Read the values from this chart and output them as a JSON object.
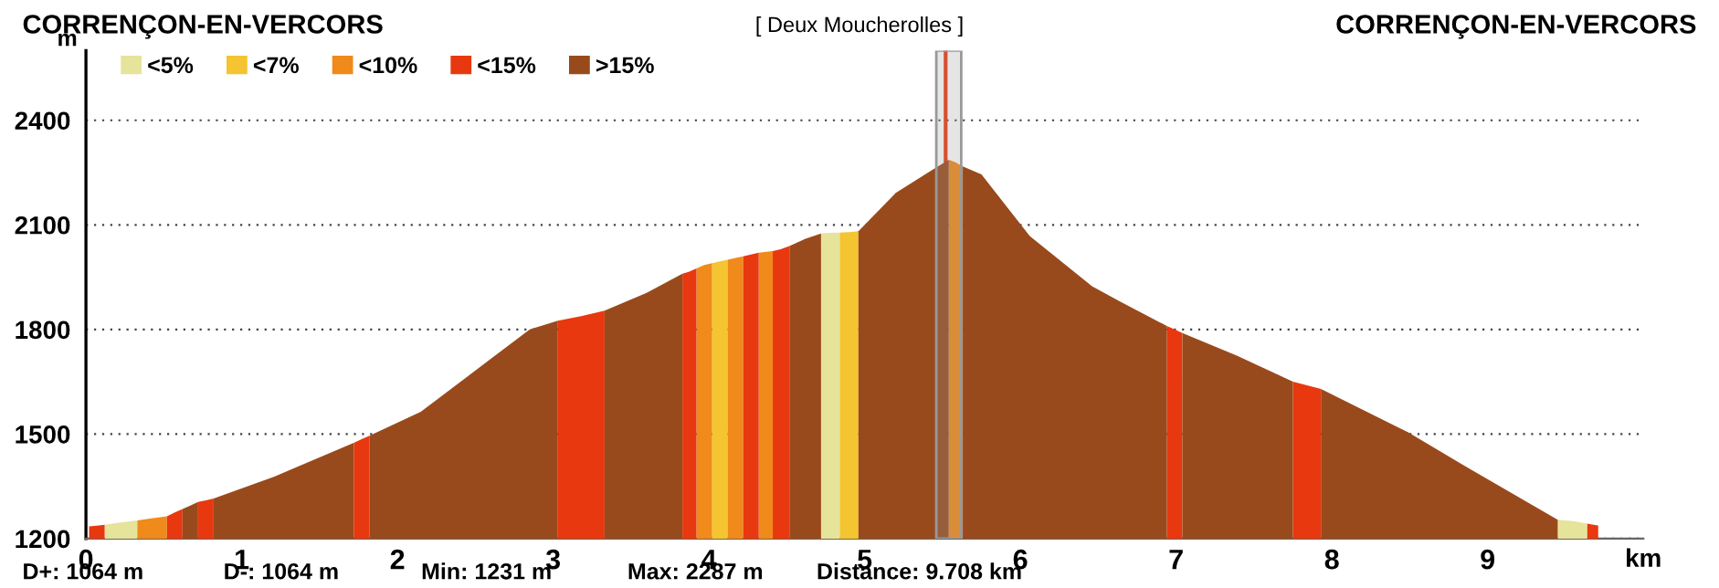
{
  "chart_data": {
    "type": "area",
    "title": "CORRENÇON-EN-VERCORS",
    "subtitle": "[ Deux Moucherolles ]",
    "xlabel": "km",
    "ylabel": "m",
    "annotations": [
      "CORRENÇON-EN-VERCORS",
      "D+: 1064 m",
      "D-: 1064 m",
      "Min: 1231 m",
      "Max: 2287 m",
      "Distance: 9.708 km"
    ],
    "x": [
      0.02,
      0.07,
      0.12,
      0.2,
      0.33,
      0.42,
      0.52,
      0.57,
      0.62,
      0.67,
      0.72,
      0.77,
      0.82,
      1.21,
      1.72,
      1.77,
      1.82,
      2.15,
      2.58,
      2.85,
      3.03,
      3.18,
      3.33,
      3.6,
      3.83,
      3.87,
      3.92,
      3.97,
      4.02,
      4.07,
      4.12,
      4.17,
      4.22,
      4.27,
      4.32,
      4.36,
      4.41,
      4.46,
      4.52,
      4.62,
      4.72,
      4.78,
      4.84,
      4.9,
      4.96,
      5.2,
      5.54,
      5.58,
      5.63,
      5.75,
      6.06,
      6.46,
      6.64,
      6.94,
      6.99,
      7.04,
      7.39,
      7.75,
      7.84,
      7.93,
      8.49,
      8.87,
      9.45,
      9.55,
      9.64,
      9.68,
      9.71
    ],
    "series": [
      {
        "name": "<5%",
        "color": "#e6e39a",
        "values": [
          null,
          null,
          1240,
          1245,
          1252,
          null,
          null,
          null,
          null,
          null,
          null,
          null,
          null,
          null,
          null,
          null,
          null,
          null,
          null,
          null,
          null,
          null,
          null,
          null,
          null,
          null,
          null,
          null,
          null,
          null,
          null,
          null,
          null,
          null,
          null,
          null,
          null,
          null,
          null,
          null,
          2075,
          2077,
          2078,
          null,
          null,
          null,
          null,
          null,
          null,
          null,
          null,
          null,
          null,
          null,
          null,
          null,
          null,
          null,
          null,
          null,
          null,
          null,
          1254,
          1250,
          1243,
          null,
          null
        ]
      },
      {
        "name": "<7%",
        "color": "#f4c431",
        "values": [
          null,
          null,
          null,
          null,
          null,
          null,
          null,
          null,
          null,
          null,
          null,
          null,
          null,
          null,
          null,
          null,
          null,
          null,
          null,
          null,
          null,
          null,
          null,
          null,
          null,
          null,
          null,
          null,
          1990,
          1995,
          2000,
          null,
          null,
          null,
          null,
          null,
          null,
          null,
          null,
          null,
          null,
          null,
          2078,
          2079,
          2082,
          null,
          null,
          null,
          null,
          null,
          null,
          null,
          null,
          null,
          null,
          null,
          null,
          null,
          null,
          null,
          null,
          null,
          null,
          null,
          null,
          null,
          null
        ]
      },
      {
        "name": "<10%",
        "color": "#f08a1a",
        "values": [
          null,
          null,
          null,
          null,
          1252,
          1258,
          1264,
          null,
          null,
          null,
          null,
          null,
          null,
          null,
          null,
          null,
          null,
          null,
          null,
          null,
          null,
          null,
          null,
          null,
          null,
          null,
          1975,
          1985,
          1990,
          null,
          2000,
          2005,
          2010,
          null,
          2020,
          2022,
          2025,
          null,
          null,
          null,
          null,
          null,
          null,
          null,
          null,
          null,
          2287,
          2280,
          2268,
          null,
          null,
          null,
          null,
          null,
          null,
          null,
          null,
          null,
          null,
          null,
          null,
          null,
          null,
          null,
          null,
          null,
          null
        ]
      },
      {
        "name": "<15%",
        "color": "#e8380f",
        "values": [
          1235,
          1237,
          1240,
          null,
          null,
          null,
          1264,
          1275,
          1285,
          null,
          1305,
          1310,
          1315,
          null,
          1475,
          1485,
          1495,
          null,
          null,
          null,
          1825,
          1838,
          1854,
          null,
          1960,
          1965,
          1975,
          null,
          null,
          null,
          null,
          null,
          2010,
          2015,
          2020,
          null,
          2025,
          2030,
          2040,
          null,
          null,
          null,
          null,
          null,
          null,
          null,
          null,
          null,
          null,
          null,
          null,
          null,
          null,
          1810,
          1800,
          1790,
          null,
          1650,
          1640,
          1629,
          null,
          null,
          null,
          null,
          1243,
          1240,
          1238
        ]
      },
      {
        "name": ">15%",
        "color": "#994a1c",
        "values": [
          null,
          null,
          null,
          null,
          null,
          null,
          null,
          null,
          1285,
          1295,
          1305,
          null,
          1315,
          1378,
          1475,
          null,
          1495,
          1564,
          1709,
          1800,
          1825,
          null,
          1854,
          1905,
          1960,
          null,
          null,
          null,
          null,
          null,
          null,
          null,
          null,
          null,
          null,
          null,
          null,
          null,
          2040,
          2060,
          2075,
          null,
          null,
          null,
          2082,
          2192,
          2287,
          null,
          2268,
          2245,
          2068,
          1924,
          1880,
          1810,
          null,
          1790,
          1725,
          1650,
          null,
          1629,
          1505,
          1404,
          1254,
          null,
          null,
          null,
          null
        ]
      }
    ],
    "xlim": [
      0,
      10
    ],
    "xticks": [
      0,
      1,
      2,
      3,
      4,
      5,
      6,
      7,
      8,
      9
    ],
    "ylim": [
      1200,
      2600
    ],
    "yticks": [
      1200,
      1500,
      1800,
      2100,
      2400
    ],
    "ref_lines": [
      {
        "axis": "x",
        "value": 5.52,
        "label": null,
        "color": "#e8380f"
      }
    ],
    "bands": [
      {
        "axis": "x",
        "from": 5.46,
        "to": 5.62,
        "label": null,
        "color": "#999999"
      }
    ],
    "grid": "y",
    "legend": "top left"
  }
}
